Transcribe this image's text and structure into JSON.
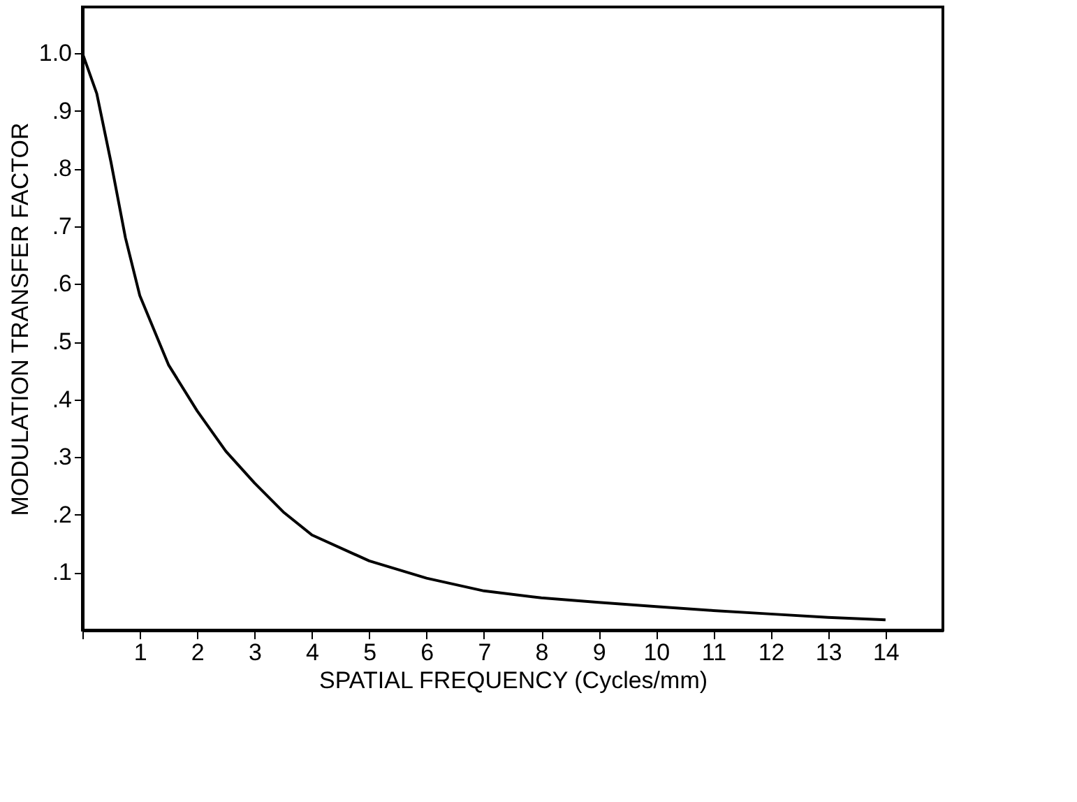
{
  "chart_data": {
    "type": "line",
    "xlabel": "SPATIAL FREQUENCY (Cycles/mm)",
    "ylabel": "MODULATION TRANSFER FACTOR",
    "x": [
      0,
      0.25,
      0.5,
      0.75,
      1,
      1.5,
      2,
      2.5,
      3,
      3.5,
      4,
      5,
      6,
      7,
      8,
      9,
      10,
      11,
      12,
      13,
      14
    ],
    "series": [
      {
        "color": "#000000",
        "values": [
          1.0,
          0.93,
          0.81,
          0.68,
          0.58,
          0.46,
          0.38,
          0.31,
          0.255,
          0.205,
          0.165,
          0.12,
          0.09,
          0.068,
          0.056,
          0.048,
          0.041,
          0.034,
          0.028,
          0.022,
          0.018
        ]
      }
    ],
    "xlim": [
      0,
      15
    ],
    "xticks": [
      {
        "value": 0,
        "label": null
      },
      1,
      2,
      3,
      4,
      5,
      6,
      7,
      8,
      9,
      10,
      11,
      12,
      13,
      14
    ],
    "ylim": [
      0,
      1.08
    ],
    "yticks": [
      {
        "value": 0.1,
        "label": ".1"
      },
      {
        "value": 0.2,
        "label": ".2"
      },
      {
        "value": 0.3,
        "label": ".3"
      },
      {
        "value": 0.4,
        "label": ".4"
      },
      {
        "value": 0.5,
        "label": ".5"
      },
      {
        "value": 0.6,
        "label": ".6"
      },
      {
        "value": 0.7,
        "label": ".7"
      },
      {
        "value": 0.8,
        "label": ".8"
      },
      {
        "value": 0.9,
        "label": ".9"
      },
      {
        "value": 1.0,
        "label": "1.0"
      }
    ],
    "grid": false,
    "legend": false,
    "marker": "none",
    "line_style": "solid"
  }
}
